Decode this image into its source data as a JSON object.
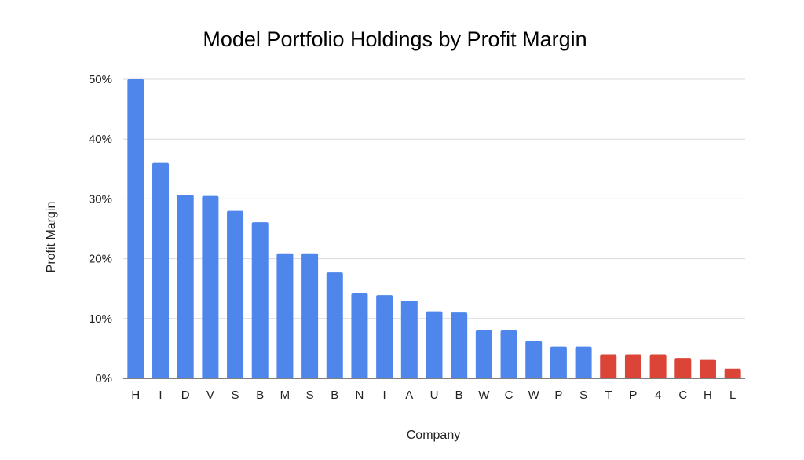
{
  "chart_data": {
    "type": "bar",
    "title": "Model Portfolio Holdings by Profit Margin",
    "xlabel": "Company",
    "ylabel": "Profit Margin",
    "categories": [
      "H",
      "I",
      "D",
      "V",
      "S",
      "B",
      "M",
      "S",
      "B",
      "N",
      "I",
      "A",
      "U",
      "B",
      "W",
      "C",
      "W",
      "P",
      "S",
      "T",
      "P",
      "4",
      "C",
      "H",
      "L"
    ],
    "values": [
      0.5,
      0.36,
      0.307,
      0.305,
      0.28,
      0.261,
      0.209,
      0.209,
      0.177,
      0.143,
      0.139,
      0.13,
      0.112,
      0.11,
      0.08,
      0.08,
      0.062,
      0.053,
      0.053,
      0.04,
      0.04,
      0.04,
      0.034,
      0.032,
      0.016
    ],
    "bar_colors": [
      "#4f86ec",
      "#4f86ec",
      "#4f86ec",
      "#4f86ec",
      "#4f86ec",
      "#4f86ec",
      "#4f86ec",
      "#4f86ec",
      "#4f86ec",
      "#4f86ec",
      "#4f86ec",
      "#4f86ec",
      "#4f86ec",
      "#4f86ec",
      "#4f86ec",
      "#4f86ec",
      "#4f86ec",
      "#4f86ec",
      "#4f86ec",
      "#db4437",
      "#db4437",
      "#db4437",
      "#db4437",
      "#db4437",
      "#db4437"
    ],
    "ylim": [
      0,
      0.5
    ],
    "yticks": [
      0,
      0.1,
      0.2,
      0.3,
      0.4,
      0.5
    ],
    "ytick_labels": [
      "0%",
      "10%",
      "20%",
      "30%",
      "40%",
      "50%"
    ],
    "grid": true,
    "legend": "none",
    "colors": {
      "primary": "#4f86ec",
      "highlight": "#db4437",
      "grid": "#d9d9d9",
      "axis": "#333333",
      "text": "#222222"
    }
  }
}
